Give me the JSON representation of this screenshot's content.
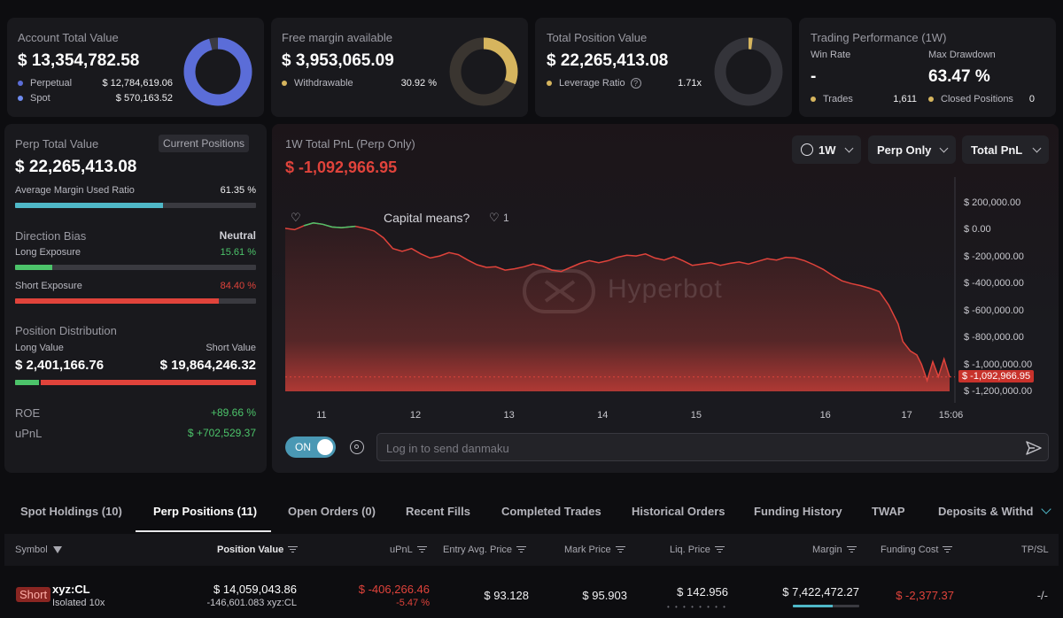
{
  "account": {
    "title": "Account Total Value",
    "value": "$ 13,354,782.58",
    "perpetual_label": "Perpetual",
    "perpetual_value": "$ 12,784,619.06",
    "spot_label": "Spot",
    "spot_value": "$ 570,163.52",
    "perp_color": "#5b6dd8",
    "spot_color": "#6f8cf0",
    "donut_fraction": 0.957
  },
  "margin": {
    "title": "Free margin available",
    "value": "$ 3,953,065.09",
    "withdrawable_label": "Withdrawable",
    "withdrawable_value": "30.92 %",
    "color": "#d6b55e",
    "donut_fraction": 0.3092
  },
  "position": {
    "title": "Total Position Value",
    "value": "$ 22,265,413.08",
    "leverage_label": "Leverage Ratio",
    "leverage_value": "1.71x",
    "color": "#d6b55e",
    "donut_fraction": 0.02
  },
  "performance": {
    "title": "Trading Performance (1W)",
    "win_rate_label": "Win Rate",
    "win_rate_value": "-",
    "max_drawdown_label": "Max Drawdown",
    "max_drawdown_value": "63.47 %",
    "trades_label": "Trades",
    "trades_value": "1,611",
    "closed_label": "Closed Positions",
    "closed_value": "0"
  },
  "perp": {
    "title": "Perp Total Value",
    "current_positions": "Current Positions",
    "value": "$ 22,265,413.08",
    "margin_ratio_label": "Average Margin Used Ratio",
    "margin_ratio_value": "61.35 %",
    "margin_ratio_fraction": 0.6135,
    "direction_bias_label": "Direction Bias",
    "direction_bias_value": "Neutral",
    "long_exposure_label": "Long Exposure",
    "long_exposure_value": "15.61 %",
    "long_exposure_fraction": 0.1561,
    "short_exposure_label": "Short Exposure",
    "short_exposure_value": "84.40 %",
    "short_exposure_fraction": 0.844,
    "distribution_label": "Position Distribution",
    "long_value_label": "Long Value",
    "long_value": "$ 2,401,166.76",
    "short_value_label": "Short Value",
    "short_value": "$ 19,864,246.32",
    "long_fraction": 0.1078,
    "roe_label": "ROE",
    "roe_value": "+89.66 %",
    "upnl_label": "uPnL",
    "upnl_value": "$ +702,529.37"
  },
  "chart_panel": {
    "title": "1W Total PnL (Perp Only)",
    "value": "$ -1,092,966.95",
    "period": "1W",
    "scope": "Perp Only",
    "metric": "Total PnL",
    "comment": "Capital means?",
    "like_count": "1",
    "watermark": "Hyperbot",
    "danmaku_toggle": "ON",
    "danmaku_placeholder": "Log in to send danmaku"
  },
  "chart_data": {
    "type": "area",
    "title": "",
    "xlabel": "",
    "ylabel": "",
    "x_ticks": [
      "11",
      "12",
      "13",
      "14",
      "15",
      "16",
      "17",
      "15:06"
    ],
    "y_ticks": [
      "$ 200,000.00",
      "$ 0.00",
      "$ -200,000.00",
      "$ -400,000.00",
      "$ -600,000.00",
      "$ -800,000.00",
      "$ -1,000,000.00",
      "$ -1,200,000.00"
    ],
    "ylim": [
      -1300000,
      250000
    ],
    "current_label": "$ -1,092,966.95",
    "current_value": -1092966.95,
    "x_range": [
      10.6,
      17.7
    ],
    "positive_color": "#4cc36a",
    "negative_color": "#e0433b",
    "points": [
      [
        10.6,
        10000
      ],
      [
        10.7,
        0
      ],
      [
        10.8,
        30000
      ],
      [
        10.9,
        50000
      ],
      [
        11.0,
        40000
      ],
      [
        11.1,
        20000
      ],
      [
        11.2,
        15000
      ],
      [
        11.35,
        25000
      ],
      [
        11.45,
        10000
      ],
      [
        11.55,
        -10000
      ],
      [
        11.65,
        -60000
      ],
      [
        11.75,
        -140000
      ],
      [
        11.85,
        -160000
      ],
      [
        11.95,
        -140000
      ],
      [
        12.05,
        -180000
      ],
      [
        12.15,
        -210000
      ],
      [
        12.25,
        -195000
      ],
      [
        12.35,
        -170000
      ],
      [
        12.45,
        -185000
      ],
      [
        12.55,
        -225000
      ],
      [
        12.65,
        -260000
      ],
      [
        12.75,
        -280000
      ],
      [
        12.85,
        -275000
      ],
      [
        12.95,
        -300000
      ],
      [
        13.05,
        -290000
      ],
      [
        13.15,
        -275000
      ],
      [
        13.25,
        -255000
      ],
      [
        13.35,
        -270000
      ],
      [
        13.45,
        -300000
      ],
      [
        13.55,
        -310000
      ],
      [
        13.65,
        -280000
      ],
      [
        13.75,
        -250000
      ],
      [
        13.85,
        -230000
      ],
      [
        13.95,
        -245000
      ],
      [
        14.05,
        -230000
      ],
      [
        14.15,
        -205000
      ],
      [
        14.25,
        -190000
      ],
      [
        14.35,
        -195000
      ],
      [
        14.45,
        -180000
      ],
      [
        14.55,
        -210000
      ],
      [
        14.65,
        -225000
      ],
      [
        14.75,
        -200000
      ],
      [
        14.85,
        -230000
      ],
      [
        14.95,
        -265000
      ],
      [
        15.05,
        -255000
      ],
      [
        15.15,
        -245000
      ],
      [
        15.25,
        -265000
      ],
      [
        15.35,
        -250000
      ],
      [
        15.45,
        -240000
      ],
      [
        15.55,
        -255000
      ],
      [
        15.65,
        -235000
      ],
      [
        15.75,
        -215000
      ],
      [
        15.85,
        -225000
      ],
      [
        15.95,
        -205000
      ],
      [
        16.05,
        -210000
      ],
      [
        16.15,
        -230000
      ],
      [
        16.25,
        -260000
      ],
      [
        16.35,
        -295000
      ],
      [
        16.45,
        -340000
      ],
      [
        16.55,
        -380000
      ],
      [
        16.65,
        -400000
      ],
      [
        16.75,
        -415000
      ],
      [
        16.85,
        -435000
      ],
      [
        16.95,
        -460000
      ],
      [
        17.05,
        -560000
      ],
      [
        17.15,
        -700000
      ],
      [
        17.2,
        -830000
      ],
      [
        17.28,
        -900000
      ],
      [
        17.35,
        -930000
      ],
      [
        17.4,
        -1000000
      ],
      [
        17.46,
        -1120000
      ],
      [
        17.52,
        -980000
      ],
      [
        17.58,
        -1090000
      ],
      [
        17.64,
        -960000
      ],
      [
        17.7,
        -1092966.95
      ]
    ]
  },
  "tabs": [
    {
      "label": "Spot Holdings (10)"
    },
    {
      "label": "Perp Positions (11)"
    },
    {
      "label": "Open Orders (0)"
    },
    {
      "label": "Recent Fills"
    },
    {
      "label": "Completed Trades"
    },
    {
      "label": "Historical Orders"
    },
    {
      "label": "Funding History"
    },
    {
      "label": "TWAP"
    },
    {
      "label": "Deposits & Withd"
    }
  ],
  "table": {
    "headers": {
      "symbol": "Symbol",
      "position_value": "Position Value",
      "upnl": "uPnL",
      "entry": "Entry Avg. Price",
      "mark": "Mark Price",
      "liq": "Liq. Price",
      "margin": "Margin",
      "funding": "Funding Cost",
      "tpsl": "TP/SL"
    },
    "row": {
      "side": "Short",
      "symbol": "xyz:CL",
      "margin_mode": "Isolated 10x",
      "position_value": "$ 14,059,043.86",
      "position_size": "-146,601.083 xyz:CL",
      "upnl": "$ -406,266.46",
      "upnl_pct": "-5.47 %",
      "entry": "$ 93.128",
      "mark": "$ 95.903",
      "liq": "$ 142.956",
      "margin": "$ 7,422,472.27",
      "margin_fraction": 0.6,
      "funding": "$ -2,377.37",
      "tpsl": "-/-"
    }
  }
}
